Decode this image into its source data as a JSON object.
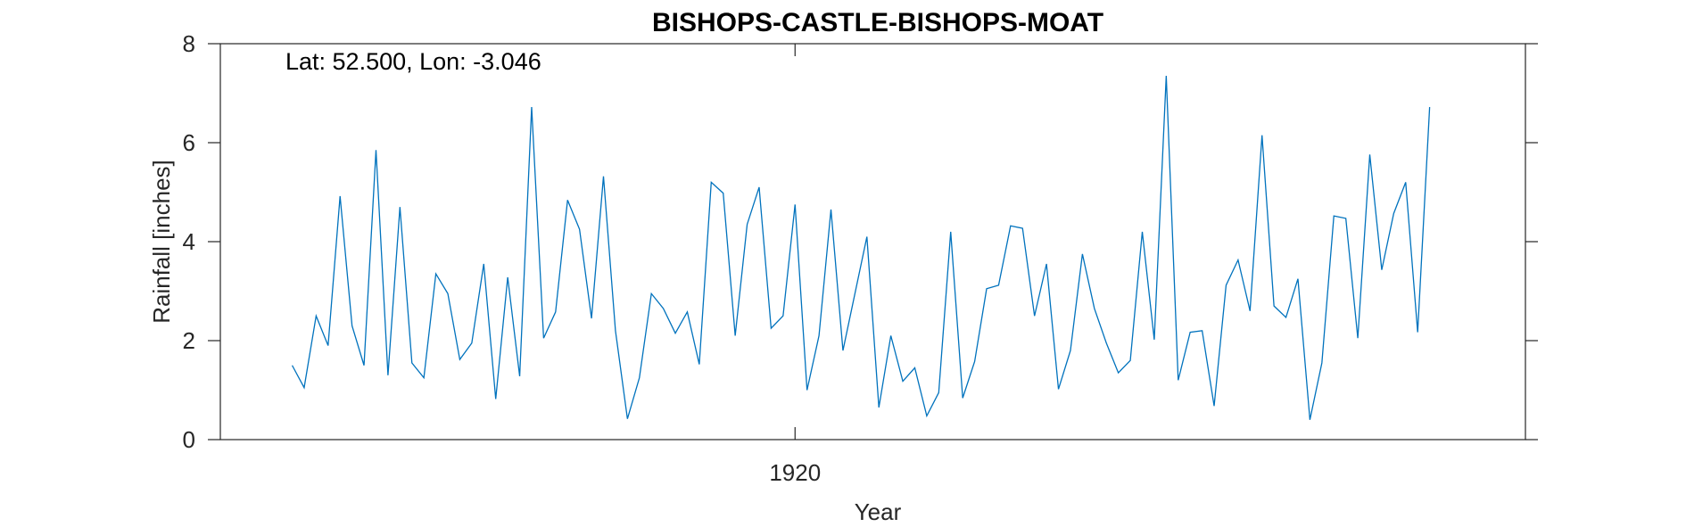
{
  "chart_data": {
    "type": "line",
    "title": "BISHOPS-CASTLE-BISHOPS-MOAT",
    "annotation": "Lat: 52.500, Lon: -3.046",
    "xlabel": "Year",
    "ylabel": "Rainfall [inches]",
    "ylim": [
      0,
      8
    ],
    "yticks": [
      "0",
      "2",
      "4",
      "6",
      "8"
    ],
    "xtick_labels": [
      {
        "value": 1920,
        "label": "1920"
      }
    ],
    "xlim": [
      1872,
      1981
    ],
    "grid": false,
    "line_color": "#0072BD",
    "series": [
      {
        "name": "Rainfall",
        "x": [
          1878,
          1879,
          1880,
          1881,
          1882,
          1883,
          1884,
          1885,
          1886,
          1887,
          1888,
          1889,
          1890,
          1891,
          1892,
          1893,
          1894,
          1895,
          1896,
          1897,
          1898,
          1899,
          1900,
          1901,
          1902,
          1903,
          1904,
          1905,
          1906,
          1907,
          1908,
          1909,
          1910,
          1911,
          1912,
          1913,
          1914,
          1915,
          1916,
          1917,
          1918,
          1919,
          1920,
          1921,
          1922,
          1923,
          1924,
          1925,
          1926,
          1927,
          1928,
          1929,
          1930,
          1931,
          1932,
          1933,
          1934,
          1935,
          1936,
          1937,
          1938,
          1939,
          1940,
          1941,
          1942,
          1943,
          1944,
          1945,
          1946,
          1947,
          1948,
          1949,
          1950,
          1951,
          1952,
          1953,
          1954,
          1955,
          1956,
          1957,
          1958,
          1959,
          1960,
          1961,
          1962,
          1963,
          1964,
          1965,
          1966,
          1967,
          1968,
          1969,
          1970,
          1971,
          1972,
          1973
        ],
        "values": [
          1.5,
          1.05,
          2.5,
          1.9,
          4.92,
          2.3,
          1.5,
          5.85,
          1.3,
          4.7,
          1.55,
          1.25,
          3.35,
          2.95,
          1.62,
          1.95,
          3.55,
          0.82,
          3.28,
          1.28,
          6.72,
          2.05,
          2.58,
          4.84,
          4.25,
          2.45,
          5.32,
          2.2,
          0.42,
          1.25,
          2.95,
          2.65,
          2.15,
          2.58,
          1.52,
          5.2,
          4.98,
          2.1,
          4.35,
          5.1,
          2.25,
          2.5,
          4.75,
          1.0,
          2.1,
          4.65,
          1.8,
          2.95,
          4.1,
          0.65,
          2.1,
          1.18,
          1.45,
          0.48,
          0.95,
          4.2,
          0.84,
          1.58,
          3.05,
          3.12,
          4.32,
          4.27,
          2.5,
          3.55,
          1.02,
          1.8,
          3.75,
          2.65,
          1.95,
          1.35,
          1.6,
          4.2,
          2.02,
          7.35,
          1.2,
          2.17,
          2.2,
          0.68,
          3.12,
          3.63,
          2.6,
          6.15,
          2.7,
          2.47,
          3.25,
          0.4,
          1.55,
          4.52,
          4.47,
          2.05,
          5.76,
          3.43,
          4.57,
          5.2,
          2.17,
          6.72
        ]
      }
    ]
  }
}
